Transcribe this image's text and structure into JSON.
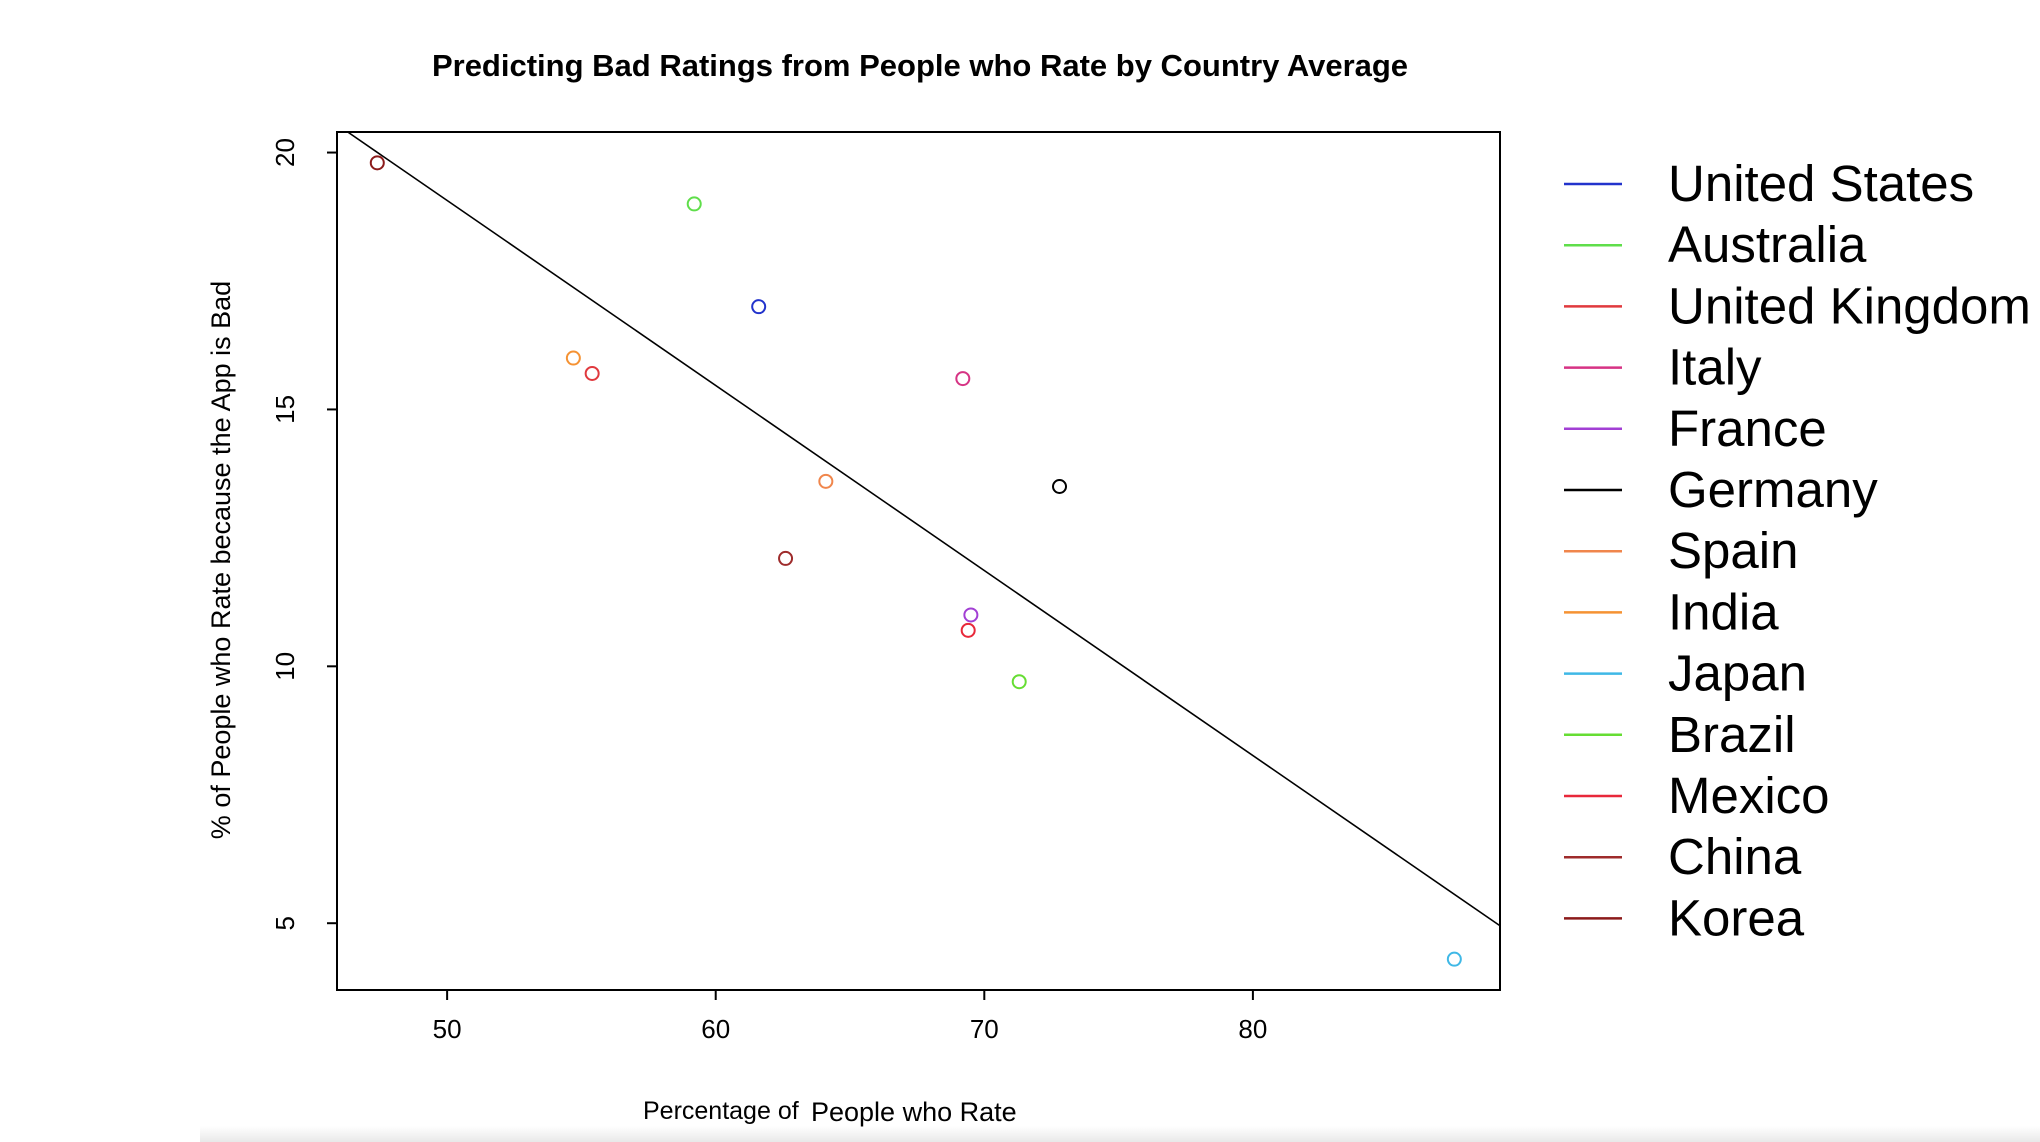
{
  "chart_data": {
    "type": "scatter",
    "title": "Predicting Bad Ratings from People who Rate by Country Average",
    "xlabel_prefix": "Percentage of",
    "xlabel_main": "People who Rate",
    "ylabel": "% of People who Rate because the App is Bad",
    "xlim": [
      45.9,
      89.2
    ],
    "ylim": [
      3.7,
      20.4
    ],
    "x_ticks": [
      50,
      60,
      70,
      80
    ],
    "x_tick_labels": [
      "50",
      "60",
      "70",
      "80"
    ],
    "y_ticks": [
      5,
      10,
      15,
      20
    ],
    "y_tick_labels": [
      "5",
      "10",
      "15",
      "20"
    ],
    "grid": false,
    "legend_position": "right",
    "regression_line": {
      "x": [
        46.3,
        89.2
      ],
      "y": [
        20.4,
        4.95
      ]
    },
    "series": [
      {
        "name": "United States",
        "color": "#2233cc",
        "x": 61.6,
        "y": 17.0
      },
      {
        "name": "Australia",
        "color": "#5fde4a",
        "x": 59.2,
        "y": 19.0
      },
      {
        "name": "United Kingdom",
        "color": "#e0393e",
        "x": 55.4,
        "y": 15.7
      },
      {
        "name": "Italy",
        "color": "#d63384",
        "x": 69.2,
        "y": 15.6
      },
      {
        "name": "France",
        "color": "#a23fd4",
        "x": 69.5,
        "y": 11.0
      },
      {
        "name": "Germany",
        "color": "#000000",
        "x": 72.8,
        "y": 13.5
      },
      {
        "name": "Spain",
        "color": "#f0864c",
        "x": 64.1,
        "y": 13.6
      },
      {
        "name": "India",
        "color": "#f59233",
        "x": 54.7,
        "y": 16.0
      },
      {
        "name": "Japan",
        "color": "#3fb8e6",
        "x": 87.5,
        "y": 4.3
      },
      {
        "name": "Brazil",
        "color": "#66dd33",
        "x": 71.3,
        "y": 9.7
      },
      {
        "name": "Mexico",
        "color": "#e8283a",
        "x": 69.4,
        "y": 10.7
      },
      {
        "name": "China",
        "color": "#9e2b2b",
        "x": 62.6,
        "y": 12.1
      },
      {
        "name": "Korea",
        "color": "#8b1a1a",
        "x": 47.4,
        "y": 19.8
      }
    ]
  }
}
